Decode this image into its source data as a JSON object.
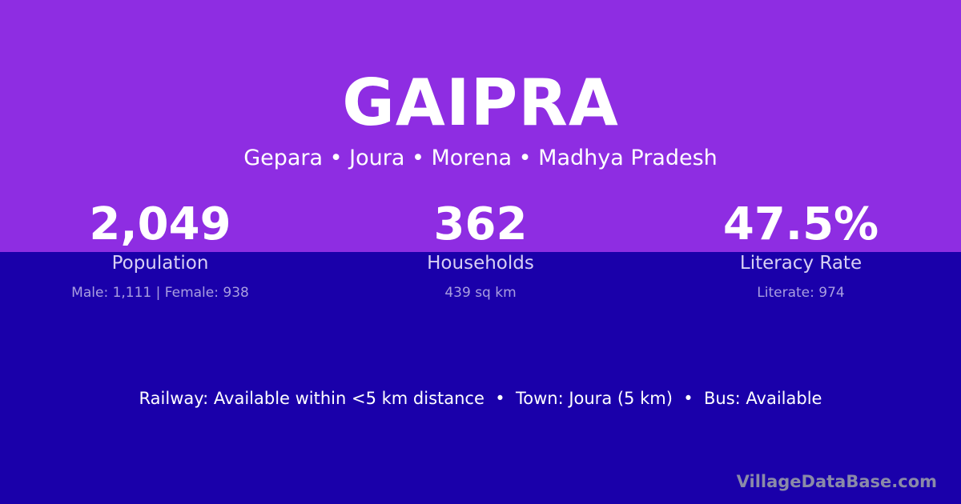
{
  "colors": {
    "top_background": "#8e2de2",
    "bottom_background": "#1a00aa"
  },
  "title": "GAIPRA",
  "subtitle": "Gepara • Joura • Morena • Madhya Pradesh",
  "stats": [
    {
      "value": "2,049",
      "label": "Population",
      "detail": "Male: 1,111 | Female: 938"
    },
    {
      "value": "362",
      "label": "Households",
      "detail": "439 sq km"
    },
    {
      "value": "47.5%",
      "label": "Literacy Rate",
      "detail": "Literate: 974"
    }
  ],
  "footer": "Railway: Available within <5 km distance  •  Town: Joura (5 km)  •  Bus: Available",
  "watermark": "VillageDataBase.com"
}
